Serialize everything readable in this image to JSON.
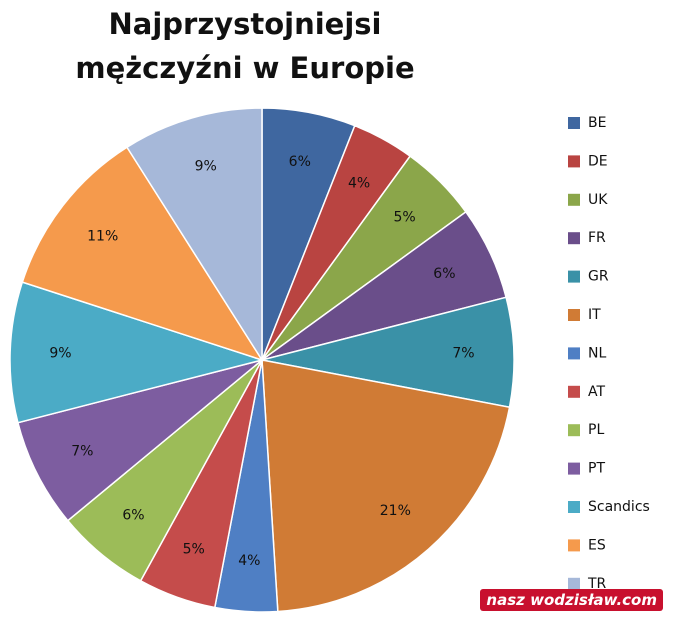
{
  "chart_data": {
    "type": "pie",
    "title": "Najprzystojniejsi mężczyźni w Europie",
    "categories": [
      "BE",
      "DE",
      "UK",
      "FR",
      "GR",
      "IT",
      "NL",
      "AT",
      "PL",
      "PT",
      "Scandics",
      "ES",
      "TR"
    ],
    "values": [
      6,
      4,
      5,
      6,
      7,
      21,
      4,
      5,
      6,
      7,
      9,
      11,
      9
    ],
    "value_labels": [
      "6%",
      "4%",
      "5%",
      "6%",
      "7%",
      "21%",
      "4%",
      "5%",
      "6%",
      "7%",
      "9%",
      "11%",
      "9%"
    ],
    "colors": [
      "#3f67a0",
      "#b94441",
      "#8ba64a",
      "#6a4e8a",
      "#3a91a7",
      "#d07b35",
      "#4f7fc4",
      "#c54c4b",
      "#9cbc58",
      "#7d5da0",
      "#4babc6",
      "#f59a4c",
      "#a6b8d9"
    ],
    "legend": "right"
  },
  "watermark": {
    "brand": "nasz",
    "site": "wodzisław.com"
  }
}
